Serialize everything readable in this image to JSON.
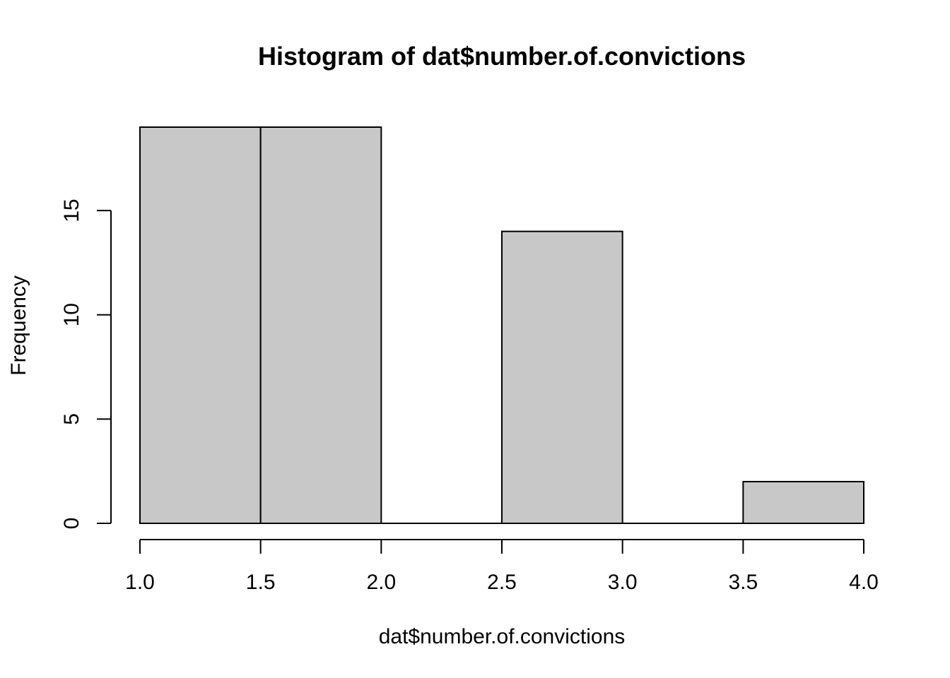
{
  "chart_data": {
    "type": "bar",
    "title": "Histogram of dat$number.of.convictions",
    "xlabel": "dat$number.of.convictions",
    "ylabel": "Frequency",
    "bins": [
      {
        "start": 1.0,
        "end": 1.5,
        "count": 19
      },
      {
        "start": 1.5,
        "end": 2.0,
        "count": 19
      },
      {
        "start": 2.0,
        "end": 2.5,
        "count": 0
      },
      {
        "start": 2.5,
        "end": 3.0,
        "count": 14
      },
      {
        "start": 3.0,
        "end": 3.5,
        "count": 0
      },
      {
        "start": 3.5,
        "end": 4.0,
        "count": 2
      }
    ],
    "xlim": [
      1.0,
      4.0
    ],
    "ylim": [
      0,
      19
    ],
    "x_ticks": [
      "1.0",
      "1.5",
      "2.0",
      "2.5",
      "3.0",
      "3.5",
      "4.0"
    ],
    "y_ticks": [
      "0",
      "5",
      "10",
      "15"
    ],
    "grid": false,
    "colors": {
      "bar_fill": "#c8c8c8",
      "bar_stroke": "#000000"
    }
  }
}
